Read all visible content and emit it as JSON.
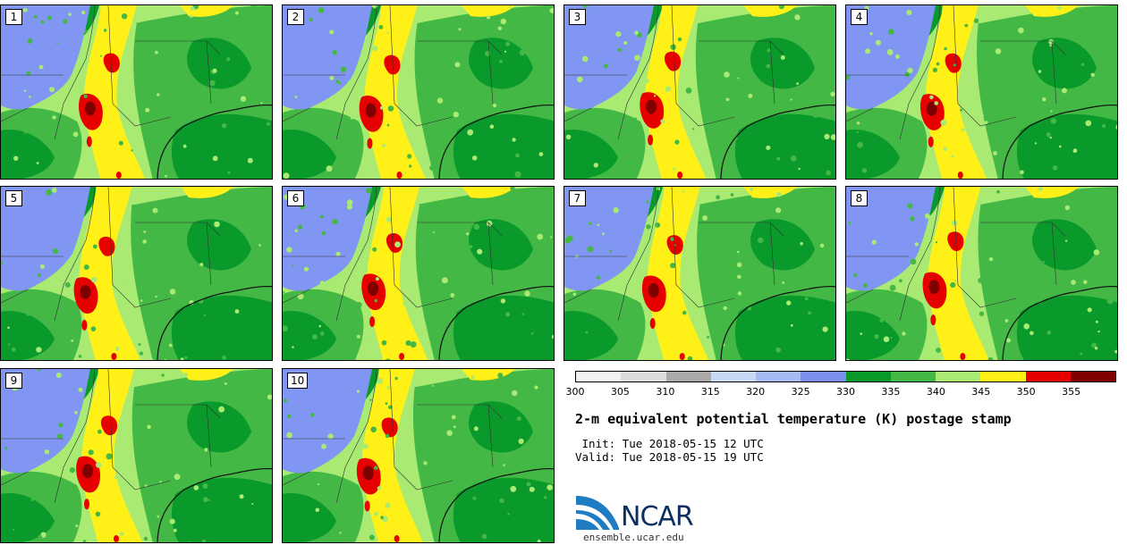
{
  "panels": [
    {
      "label": "1"
    },
    {
      "label": "2"
    },
    {
      "label": "3"
    },
    {
      "label": "4"
    },
    {
      "label": "5"
    },
    {
      "label": "6"
    },
    {
      "label": "7"
    },
    {
      "label": "8"
    },
    {
      "label": "9"
    },
    {
      "label": "10"
    }
  ],
  "colorbar": {
    "ticks": [
      "300",
      "305",
      "310",
      "315",
      "320",
      "325",
      "330",
      "335",
      "340",
      "345",
      "350",
      "355"
    ],
    "colors": [
      "#f2f2f2",
      "#dcdcdc",
      "#a9a9a9",
      "#c6d8f5",
      "#a6b9f2",
      "#7b8ff0",
      "#0a9a2c",
      "#43b844",
      "#a8ea72",
      "#fff018",
      "#e60000",
      "#7e0000"
    ]
  },
  "title": "2-m equivalent potential temperature (K) postage stamp",
  "init": " Init: Tue 2018-05-15 12 UTC",
  "valid": "Valid: Tue 2018-05-15 19 UTC",
  "logo": {
    "name": "NCAR",
    "url": "ensemble.ucar.edu",
    "colors": [
      "#1f7cc2",
      "#0b2f5e"
    ]
  },
  "map_colors": {
    "cool_blue": "#8196f2",
    "dark_green": "#0a9a2c",
    "mid_green": "#43b844",
    "light_green": "#a8ea72",
    "yellow": "#fff018",
    "red": "#e60000",
    "dark_red": "#7e0000"
  }
}
